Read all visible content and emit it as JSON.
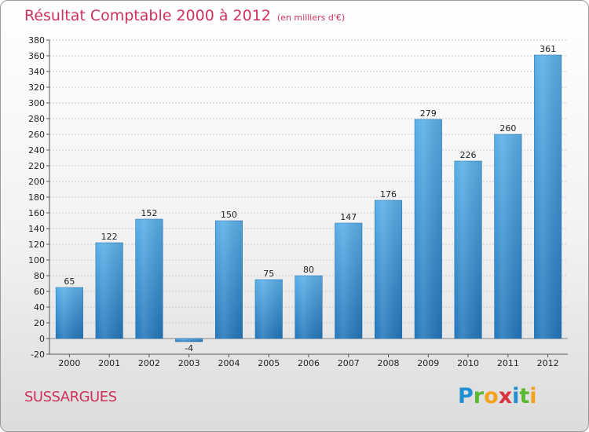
{
  "header": {
    "title": "Résultat Comptable 2000 à 2012",
    "subtitle": "(en milliers d'€)"
  },
  "footer": {
    "commune": "SUSSARGUES",
    "logo": [
      "P",
      "r",
      "o",
      "x",
      "i",
      "t",
      "i"
    ]
  },
  "colors": {
    "title": "#d0315c",
    "bar_light": "#5aafe8",
    "bar_dark": "#2477bb",
    "grid": "#cccccc"
  },
  "chart_data": {
    "type": "bar",
    "title": "Résultat Comptable 2000 à 2012",
    "subtitle": "(en milliers d'€)",
    "categories": [
      "2000",
      "2001",
      "2002",
      "2003",
      "2004",
      "2005",
      "2006",
      "2007",
      "2008",
      "2009",
      "2010",
      "2011",
      "2012"
    ],
    "values": [
      65,
      122,
      152,
      -4,
      150,
      75,
      80,
      147,
      176,
      279,
      226,
      260,
      361
    ],
    "ylim": [
      -20,
      380
    ],
    "ytick_step": 20,
    "grid": true,
    "xlabel": "",
    "ylabel": ""
  }
}
